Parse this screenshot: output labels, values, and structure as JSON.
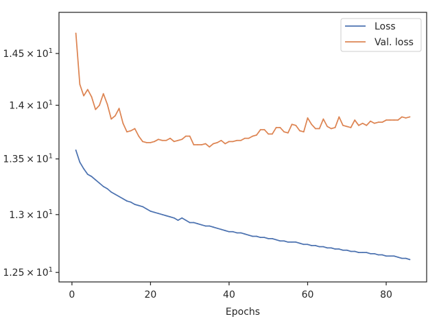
{
  "chart_data": {
    "type": "line",
    "title": "",
    "xlabel": "Epochs",
    "ylabel": "",
    "xlim": [
      -3.3,
      90.3
    ],
    "ylim": [
      12.42,
      14.91
    ],
    "y_scale": "log",
    "grid": false,
    "legend_position": "top-right",
    "x_ticks": [
      0,
      20,
      40,
      60,
      80
    ],
    "x_tick_labels": [
      "0",
      "20",
      "40",
      "60",
      "80"
    ],
    "y_ticks": [
      {
        "value": 12.5,
        "base": "1.25",
        "multiplier": "×",
        "power_base": "10",
        "exponent": "1"
      },
      {
        "value": 13.0,
        "base": "1.3",
        "multiplier": "×",
        "power_base": "10",
        "exponent": "1"
      },
      {
        "value": 13.5,
        "base": "1.35",
        "multiplier": "×",
        "power_base": "10",
        "exponent": "1"
      },
      {
        "value": 14.0,
        "base": "1.4",
        "multiplier": "×",
        "power_base": "10",
        "exponent": "1"
      },
      {
        "value": 14.5,
        "base": "1.45",
        "multiplier": "×",
        "power_base": "10",
        "exponent": "1"
      }
    ],
    "x": [
      1,
      2,
      3,
      4,
      5,
      6,
      7,
      8,
      9,
      10,
      11,
      12,
      13,
      14,
      15,
      16,
      17,
      18,
      19,
      20,
      21,
      22,
      23,
      24,
      25,
      26,
      27,
      28,
      29,
      30,
      31,
      32,
      33,
      34,
      35,
      36,
      37,
      38,
      39,
      40,
      41,
      42,
      43,
      44,
      45,
      46,
      47,
      48,
      49,
      50,
      51,
      52,
      53,
      54,
      55,
      56,
      57,
      58,
      59,
      60,
      61,
      62,
      63,
      64,
      65,
      66,
      67,
      68,
      69,
      70,
      71,
      72,
      73,
      74,
      75,
      76,
      77,
      78,
      79,
      80,
      81,
      82,
      83,
      84,
      85,
      86
    ],
    "series": [
      {
        "name": "Loss",
        "color": "#4c72b0",
        "values": [
          13.58,
          13.47,
          13.41,
          13.36,
          13.34,
          13.31,
          13.28,
          13.25,
          13.23,
          13.2,
          13.18,
          13.16,
          13.14,
          13.12,
          13.11,
          13.09,
          13.08,
          13.07,
          13.05,
          13.03,
          13.02,
          13.01,
          13.0,
          12.99,
          12.98,
          12.97,
          12.95,
          12.97,
          12.95,
          12.93,
          12.93,
          12.92,
          12.91,
          12.9,
          12.9,
          12.89,
          12.88,
          12.87,
          12.86,
          12.85,
          12.85,
          12.84,
          12.84,
          12.83,
          12.82,
          12.81,
          12.81,
          12.8,
          12.8,
          12.79,
          12.79,
          12.78,
          12.77,
          12.77,
          12.76,
          12.76,
          12.76,
          12.75,
          12.74,
          12.74,
          12.73,
          12.73,
          12.72,
          12.72,
          12.71,
          12.71,
          12.7,
          12.7,
          12.69,
          12.69,
          12.68,
          12.68,
          12.67,
          12.67,
          12.67,
          12.66,
          12.66,
          12.65,
          12.65,
          12.64,
          12.64,
          12.64,
          12.63,
          12.62,
          12.62,
          12.61
        ]
      },
      {
        "name": "Val. loss",
        "color": "#dd8452",
        "values": [
          14.7,
          14.2,
          14.09,
          14.15,
          14.08,
          13.96,
          14.0,
          14.11,
          14.01,
          13.87,
          13.9,
          13.97,
          13.83,
          13.75,
          13.76,
          13.78,
          13.71,
          13.66,
          13.65,
          13.65,
          13.66,
          13.68,
          13.67,
          13.67,
          13.69,
          13.66,
          13.67,
          13.68,
          13.71,
          13.71,
          13.63,
          13.63,
          13.63,
          13.64,
          13.61,
          13.64,
          13.65,
          13.67,
          13.64,
          13.66,
          13.66,
          13.67,
          13.67,
          13.69,
          13.69,
          13.71,
          13.72,
          13.77,
          13.77,
          13.73,
          13.73,
          13.79,
          13.79,
          13.75,
          13.74,
          13.82,
          13.81,
          13.76,
          13.75,
          13.88,
          13.82,
          13.78,
          13.78,
          13.87,
          13.8,
          13.78,
          13.79,
          13.89,
          13.81,
          13.8,
          13.79,
          13.86,
          13.81,
          13.83,
          13.81,
          13.85,
          13.83,
          13.84,
          13.84,
          13.86,
          13.86,
          13.86,
          13.86,
          13.89,
          13.88,
          13.89
        ]
      }
    ]
  }
}
